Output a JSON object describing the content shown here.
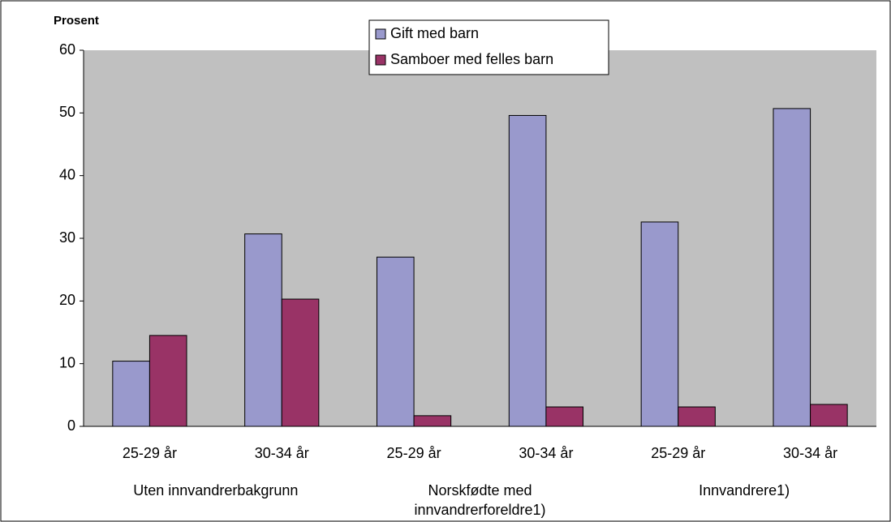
{
  "chart_data": {
    "type": "bar",
    "y_label": "Prosent",
    "categories": [
      "25-29 år",
      "30-34 år",
      "25-29 år",
      "30-34 år",
      "25-29 år",
      "30-34 år"
    ],
    "groups": [
      "Uten innvandrerbakgrunn",
      "Norskfødte med innvandrerforeldre1)",
      "Innvandrere1)"
    ],
    "series": [
      {
        "name": "Gift med barn",
        "color": "#9999cc",
        "values": [
          10.4,
          30.7,
          27,
          49.6,
          32.6,
          50.7
        ]
      },
      {
        "name": "Samboer med felles barn",
        "color": "#993366",
        "values": [
          14.5,
          20.3,
          1.7,
          3.1,
          3.1,
          3.5
        ]
      }
    ],
    "ylim": [
      0,
      60
    ],
    "yticks": [
      0,
      10,
      20,
      30,
      40,
      50,
      60
    ],
    "grid": false,
    "legend": "top",
    "background": "#c0c0c0"
  }
}
